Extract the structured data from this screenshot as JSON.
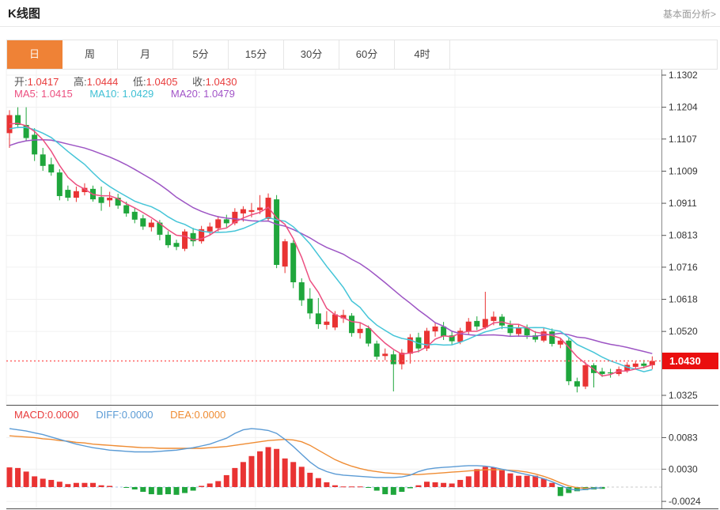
{
  "header": {
    "title": "K线图",
    "link": "基本面分析>"
  },
  "tabs": {
    "items": [
      "日",
      "周",
      "月",
      "5分",
      "15分",
      "30分",
      "60分",
      "4时"
    ],
    "active_index": 0
  },
  "kline_legend": {
    "open_label": "开:",
    "open_value": "1.0417",
    "high_label": "高:",
    "high_value": "1.0444",
    "low_label": "低:",
    "low_value": "1.0405",
    "close_label": "收:",
    "close_value": "1.0430",
    "ma5": "MA5: 1.0415",
    "ma10": "MA10: 1.0429",
    "ma20": "MA20: 1.0479"
  },
  "macd_legend": {
    "macd": "MACD:0.0000",
    "diff": "DIFF:0.0000",
    "dea": "DEA:0.0000"
  },
  "colors": {
    "up": "#e93333",
    "down": "#1fa63c",
    "ma5": "#ec4f80",
    "ma10": "#45c5d8",
    "ma20": "#9d55c4",
    "diff_line": "#5b9bd5",
    "dea_line": "#ef8c33",
    "tab_active_bg": "#ef8236",
    "price_marker_bg": "#ea0f0f",
    "price_dotted": "#ff6262",
    "grid": "#f0f0f0",
    "axis": "#8a8a8a",
    "separator": "#4d4d4d",
    "zero_dash_blue": "#a9c6e8",
    "zero_dash_gray": "#c8c8c8"
  },
  "chart_data": {
    "type": "candlestick+macd",
    "x_gridlines": [
      46,
      140,
      323,
      575
    ],
    "kline": {
      "type": "candlestick",
      "period": "日",
      "y_ticks": [
        "1.1302",
        "1.1204",
        "1.1107",
        "1.1009",
        "1.0911",
        "1.0813",
        "1.0716",
        "1.0618",
        "1.0520",
        "1.0325"
      ],
      "y_range": [
        1.0325,
        1.1302
      ],
      "current_price": "1.0430",
      "overlays": [
        "MA5",
        "MA10",
        "MA20"
      ],
      "ma_seed": [
        1.098,
        1.0992,
        1.1005,
        1.1018,
        1.103,
        1.1042,
        1.1055,
        1.1068,
        1.108,
        1.1092,
        1.1105,
        1.1115,
        1.1125,
        1.1132,
        1.1138,
        1.1142,
        1.1146,
        1.1148,
        1.115
      ],
      "ohlc": [
        [
          1.1125,
          1.1195,
          1.108,
          1.118
        ],
        [
          1.118,
          1.1204,
          1.114,
          1.115
        ],
        [
          1.115,
          1.1204,
          1.11,
          1.111
        ],
        [
          1.112,
          1.114,
          1.104,
          1.106
        ],
        [
          1.106,
          1.108,
          1.101,
          1.1025
        ],
        [
          1.103,
          1.105,
          1.0995,
          1.1005
        ],
        [
          1.1005,
          1.1015,
          1.092,
          1.0933
        ],
        [
          1.0952,
          1.0965,
          1.0918,
          1.0928
        ],
        [
          1.0928,
          1.0962,
          1.0915,
          1.0948
        ],
        [
          1.0945,
          1.0972,
          1.0935,
          1.0958
        ],
        [
          1.0955,
          1.0965,
          1.0916,
          1.0923
        ],
        [
          1.093,
          1.0962,
          1.0888,
          1.0912
        ],
        [
          1.092,
          1.0946,
          1.09,
          1.0928
        ],
        [
          1.0928,
          1.094,
          1.0894,
          1.0904
        ],
        [
          1.0905,
          1.0916,
          1.087,
          1.088
        ],
        [
          1.0885,
          1.0896,
          1.085,
          1.0861
        ],
        [
          1.0865,
          1.0876,
          1.083,
          1.084
        ],
        [
          1.0838,
          1.0862,
          1.0825,
          1.0852
        ],
        [
          1.0852,
          1.086,
          1.0798,
          1.0815
        ],
        [
          1.0815,
          1.0826,
          1.0775,
          1.0783
        ],
        [
          1.079,
          1.08,
          1.0768,
          1.0778
        ],
        [
          1.0772,
          1.0832,
          1.0765,
          1.0825
        ],
        [
          1.082,
          1.0836,
          1.078,
          1.0795
        ],
        [
          1.0795,
          1.0842,
          1.0788,
          1.0832
        ],
        [
          1.0825,
          1.0852,
          1.0812,
          1.084
        ],
        [
          1.0835,
          1.0872,
          1.0825,
          1.0862
        ],
        [
          1.0862,
          1.0876,
          1.0838,
          1.085
        ],
        [
          1.085,
          1.0896,
          1.0844,
          1.0885
        ],
        [
          1.088,
          1.0902,
          1.0855,
          1.0893
        ],
        [
          1.0885,
          1.0912,
          1.0868,
          1.089
        ],
        [
          1.089,
          1.0936,
          1.0878,
          1.0898
        ],
        [
          1.0863,
          1.0941,
          1.0855,
          1.0928
        ],
        [
          1.0923,
          1.0936,
          1.0713,
          1.0723
        ],
        [
          1.0718,
          1.0802,
          1.0698,
          1.0795
        ],
        [
          1.079,
          1.0798,
          1.0652,
          1.067
        ],
        [
          1.067,
          1.0682,
          1.0598,
          1.0615
        ],
        [
          1.062,
          1.0652,
          1.0558,
          1.0575
        ],
        [
          1.0575,
          1.0622,
          1.0528,
          1.0542
        ],
        [
          1.054,
          1.0582,
          1.0526,
          1.055
        ],
        [
          1.0532,
          1.0582,
          1.0524,
          1.0572
        ],
        [
          1.056,
          1.0586,
          1.0546,
          1.057
        ],
        [
          1.0568,
          1.0576,
          1.0504,
          1.0515
        ],
        [
          1.0515,
          1.0546,
          1.0498,
          1.0528
        ],
        [
          1.053,
          1.0538,
          1.0474,
          1.0483
        ],
        [
          1.0483,
          1.0492,
          1.0434,
          1.0443
        ],
        [
          1.0445,
          1.0468,
          1.0432,
          1.0452
        ],
        [
          1.045,
          1.0462,
          1.0337,
          1.042
        ],
        [
          1.042,
          1.0466,
          1.0404,
          1.0455
        ],
        [
          1.0452,
          1.0512,
          1.0422,
          1.0502
        ],
        [
          1.0502,
          1.0516,
          1.0456,
          1.0468
        ],
        [
          1.0468,
          1.0531,
          1.046,
          1.0522
        ],
        [
          1.052,
          1.0546,
          1.0504,
          1.0535
        ],
        [
          1.0535,
          1.0549,
          1.0494,
          1.0505
        ],
        [
          1.0508,
          1.0521,
          1.0479,
          1.049
        ],
        [
          1.0488,
          1.0531,
          1.0481,
          1.0522
        ],
        [
          1.052,
          1.0561,
          1.0511,
          1.055
        ],
        [
          1.0552,
          1.0566,
          1.0524,
          1.0535
        ],
        [
          1.0532,
          1.0641,
          1.0527,
          1.0558
        ],
        [
          1.0552,
          1.0581,
          1.0539,
          1.0565
        ],
        [
          1.0565,
          1.0573,
          1.0527,
          1.0538
        ],
        [
          1.054,
          1.0553,
          1.0504,
          1.0515
        ],
        [
          1.0512,
          1.0543,
          1.0504,
          1.0532
        ],
        [
          1.0532,
          1.0541,
          1.0497,
          1.0508
        ],
        [
          1.0508,
          1.0521,
          1.0487,
          1.0495
        ],
        [
          1.0492,
          1.0531,
          1.0487,
          1.052
        ],
        [
          1.052,
          1.0529,
          1.0474,
          1.0482
        ],
        [
          1.048,
          1.0501,
          1.0469,
          1.0492
        ],
        [
          1.0492,
          1.0501,
          1.0356,
          1.0368
        ],
        [
          1.0368,
          1.0379,
          1.0334,
          1.0352
        ],
        [
          1.0352,
          1.0426,
          1.0344,
          1.0417
        ],
        [
          1.0417,
          1.0423,
          1.0349,
          1.0393
        ],
        [
          1.0398,
          1.0409,
          1.0381,
          1.039
        ],
        [
          1.0395,
          1.0406,
          1.0379,
          1.0392
        ],
        [
          1.039,
          1.0413,
          1.0384,
          1.0405
        ],
        [
          1.04,
          1.0426,
          1.0394,
          1.0418
        ],
        [
          1.0412,
          1.0431,
          1.0404,
          1.0422
        ],
        [
          1.0422,
          1.0433,
          1.0407,
          1.0415
        ],
        [
          1.0417,
          1.0444,
          1.0405,
          1.043
        ]
      ]
    },
    "macd": {
      "type": "bar",
      "y_ticks": [
        "0.0083",
        "0.0030",
        "-0.0024"
      ],
      "histogram": [
        0.0033,
        0.0032,
        0.0026,
        0.0018,
        0.0014,
        0.0012,
        0.0009,
        0.0005,
        0.0007,
        0.0007,
        0.0007,
        0.0003,
        0.0002,
        0.0,
        -0.0001,
        -0.0004,
        -0.0008,
        -0.0012,
        -0.0013,
        -0.0012,
        -0.0013,
        -0.001,
        -0.0006,
        0.0002,
        0.0006,
        0.001,
        0.002,
        0.0032,
        0.0042,
        0.0052,
        0.006,
        0.0067,
        0.0064,
        0.0048,
        0.0042,
        0.0034,
        0.0024,
        0.0015,
        0.0008,
        0.0003,
        0.0001,
        0.0001,
        0.0001,
        -0.0001,
        -0.0006,
        -0.0012,
        -0.0013,
        -0.0008,
        -0.0002,
        0.0003,
        0.0009,
        0.0008,
        0.0007,
        0.0006,
        0.0012,
        0.0018,
        0.003,
        0.0034,
        0.0033,
        0.0028,
        0.0023,
        0.0019,
        0.0019,
        0.0019,
        0.0014,
        0.0007,
        -0.0015,
        -0.001,
        -0.0007,
        -0.0005,
        -0.0004,
        -0.0003,
        0,
        0,
        0,
        0,
        0,
        0
      ],
      "diff": [
        0.0098,
        0.0096,
        0.0094,
        0.0091,
        0.0088,
        0.0084,
        0.008,
        0.0076,
        0.0072,
        0.0069,
        0.0066,
        0.0064,
        0.0062,
        0.0061,
        0.006,
        0.0059,
        0.0059,
        0.0059,
        0.006,
        0.0061,
        0.0062,
        0.0064,
        0.0066,
        0.0069,
        0.0072,
        0.0077,
        0.0082,
        0.009,
        0.0096,
        0.0098,
        0.0097,
        0.0095,
        0.009,
        0.008,
        0.0068,
        0.0055,
        0.0042,
        0.0032,
        0.0026,
        0.0022,
        0.002,
        0.0019,
        0.0018,
        0.0017,
        0.0016,
        0.0016,
        0.0016,
        0.0017,
        0.002,
        0.0026,
        0.003,
        0.0032,
        0.0033,
        0.0034,
        0.0035,
        0.0036,
        0.0036,
        0.0035,
        0.0033,
        0.003,
        0.0027,
        0.0024,
        0.0021,
        0.0018,
        0.0014,
        0.0009,
        0.0003,
        -0.0003,
        -0.0005,
        -0.0004,
        -0.0002,
        -0.0001,
        0,
        0,
        0,
        0,
        0,
        0
      ],
      "dea": [
        0.0086,
        0.0085,
        0.0084,
        0.0083,
        0.0081,
        0.008,
        0.0078,
        0.0077,
        0.0075,
        0.0074,
        0.0072,
        0.0071,
        0.007,
        0.0069,
        0.0068,
        0.0067,
        0.0066,
        0.0066,
        0.0065,
        0.0065,
        0.0065,
        0.0065,
        0.0065,
        0.0065,
        0.0066,
        0.0067,
        0.0068,
        0.007,
        0.0072,
        0.0074,
        0.0076,
        0.0078,
        0.0079,
        0.008,
        0.0079,
        0.0076,
        0.007,
        0.0062,
        0.0054,
        0.0046,
        0.004,
        0.0035,
        0.0031,
        0.0028,
        0.0026,
        0.0024,
        0.0023,
        0.0022,
        0.0021,
        0.0021,
        0.0022,
        0.0023,
        0.0024,
        0.0025,
        0.0026,
        0.0027,
        0.0028,
        0.0029,
        0.0029,
        0.0029,
        0.0028,
        0.0027,
        0.0025,
        0.0022,
        0.0018,
        0.0013,
        0.0007,
        0.0002,
        -0.0001,
        -0.0002,
        -0.0002,
        -0.0001,
        0,
        0,
        0,
        0,
        0,
        0
      ]
    }
  }
}
